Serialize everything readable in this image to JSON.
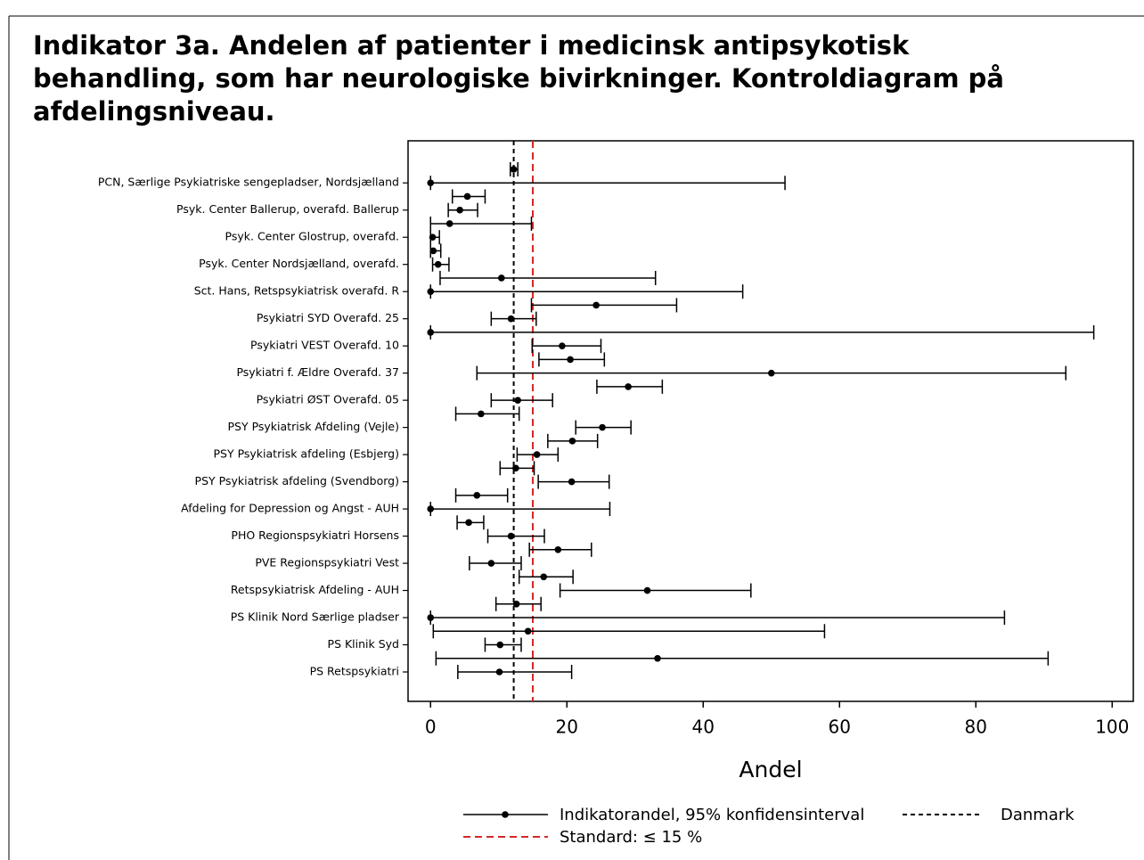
{
  "chart_data": {
    "type": "errorbar",
    "title": [
      "Indikator 3a. Andelen af patienter i medicinsk antipsykotisk",
      "behandling, som har neurologiske bivirkninger. Kontroldiagram på",
      "afdelingsniveau."
    ],
    "x_label": "Andel",
    "categories": [
      null,
      "PCN, Særlige Psykiatriske sengepladser, Nordsjælland",
      null,
      "Psyk. Center Ballerup, overafd. Ballerup",
      null,
      "Psyk. Center Glostrup, overafd.",
      null,
      "Psyk. Center Nordsjælland, overafd.",
      null,
      "Sct. Hans, Retspsykiatrisk  overafd. R",
      null,
      "Psykiatri SYD Overafd. 25",
      null,
      "Psykiatri VEST Overafd. 10",
      null,
      "Psykiatri f. Ældre Overafd. 37",
      null,
      "Psykiatri ØST Overafd. 05",
      null,
      "PSY Psykiatrisk Afdeling (Vejle)",
      null,
      "PSY Psykiatrisk afdeling (Esbjerg)",
      null,
      "PSY Psykiatrisk afdeling (Svendborg)",
      null,
      "Afdeling for Depression og Angst - AUH",
      null,
      "PHO Regionspsykiatri Horsens",
      null,
      "PVE Regionspsykiatri Vest",
      null,
      "Retspsykiatrisk Afdeling - AUH",
      null,
      "PS Klinik Nord Særlige pladser",
      null,
      "PS Klinik Syd",
      null,
      "PS Retspsykiatri"
    ],
    "series": [
      {
        "name": "Indikatorandel, 95% konfidensinterval",
        "color": "#000000",
        "values": [
          12.2,
          0,
          5.4,
          4.3,
          2.8,
          0.3,
          0.4,
          1.1,
          10.4,
          0,
          24.3,
          11.8,
          0,
          19.3,
          20.5,
          50,
          29,
          12.8,
          7.4,
          25.2,
          20.8,
          15.6,
          12.5,
          20.7,
          6.8,
          0,
          5.6,
          11.8,
          18.7,
          8.9,
          16.6,
          31.8,
          12.6,
          0,
          14.3,
          10.2,
          33.3,
          10.1
        ],
        "lower": [
          11.7,
          0,
          3.2,
          2.6,
          0,
          0,
          0,
          0.3,
          1.4,
          0,
          14.8,
          8.9,
          0,
          14.9,
          15.9,
          6.8,
          24.4,
          8.9,
          3.7,
          21.3,
          17.2,
          12.7,
          10.2,
          15.8,
          3.7,
          0,
          3.9,
          8.4,
          14.5,
          5.7,
          13,
          19,
          9.6,
          0,
          0.4,
          8,
          0.8,
          4
        ],
        "upper": [
          12.8,
          52,
          8,
          6.9,
          14.8,
          1.3,
          1.5,
          2.7,
          33,
          45.8,
          36.1,
          15.5,
          97.3,
          25,
          25.5,
          93.2,
          34,
          17.9,
          13,
          29.4,
          24.5,
          18.7,
          15.2,
          26.2,
          11.3,
          26.3,
          7.8,
          16.7,
          23.6,
          13.3,
          20.9,
          47,
          16.2,
          84.2,
          57.8,
          13.3,
          90.6,
          20.7
        ]
      }
    ],
    "reference_lines": [
      {
        "name": "Danmark",
        "value": 12.2,
        "color": "#000000"
      },
      {
        "name": "Standard: ≤ 15 %",
        "value": 15,
        "color": "#d62728"
      }
    ],
    "xlim": [
      -3.3,
      103.1
    ],
    "xticks": [
      0,
      20,
      40,
      60,
      80,
      100
    ]
  }
}
